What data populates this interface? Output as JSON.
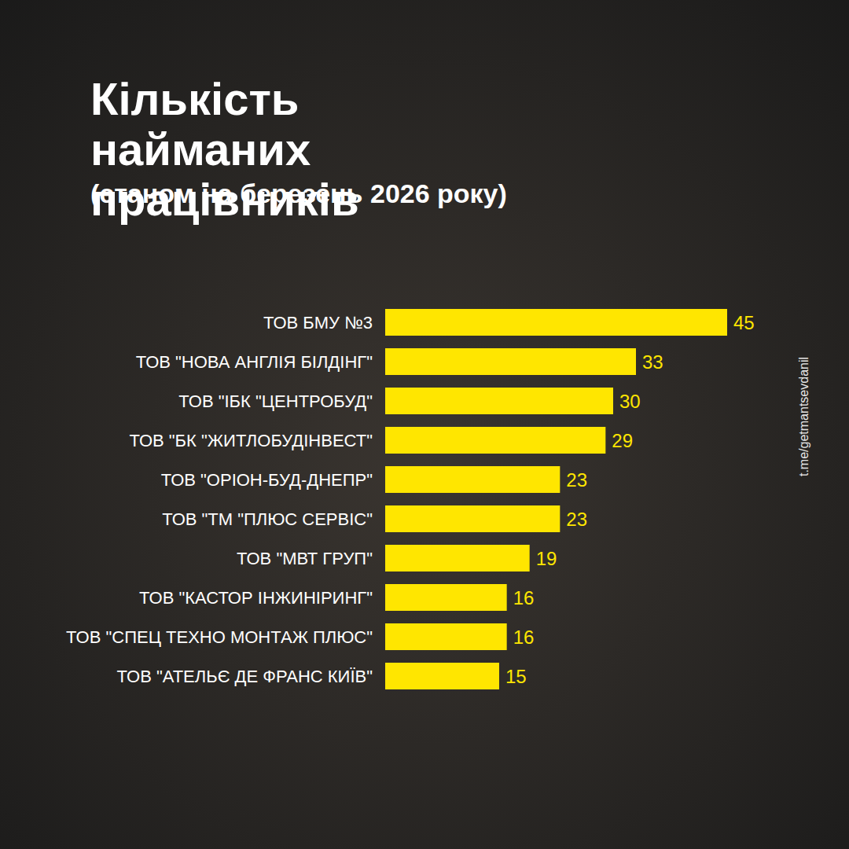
{
  "chart_data": {
    "type": "bar",
    "title": "Кількість найманих працівників",
    "subtitle": "(станом на березень 2026 року)",
    "annotation": "t.me/getmantsevdanil",
    "categories": [
      "ТОВ БМУ №3",
      "ТОВ \"НОВА АНГЛІЯ БІЛДІНГ\"",
      "ТОВ \"ІБК \"ЦЕНТРОБУД\"",
      "ТОВ \"БК \"ЖИТЛОБУДІНВЕСТ\"",
      "ТОВ \"ОРІОН-БУД-ДНЕПР\"",
      "ТОВ \"ТМ \"ПЛЮС СЕРВІС\"",
      "ТОВ \"МВТ ГРУП\"",
      "ТОВ \"КАСТОР ІНЖИНІРИНГ\"",
      "ТОВ \"СПЕЦ ТЕХНО МОНТАЖ ПЛЮС\"",
      "ТОВ \"АТЕЛЬЄ ДЕ ФРАНС КИЇВ\""
    ],
    "values": [
      45,
      33,
      30,
      29,
      23,
      23,
      19,
      16,
      16,
      15
    ],
    "color": "#ffe600",
    "xlim": [
      0,
      45
    ],
    "orientation": "horizontal",
    "data_labels": true,
    "tick_labels": "y",
    "grid": false
  }
}
